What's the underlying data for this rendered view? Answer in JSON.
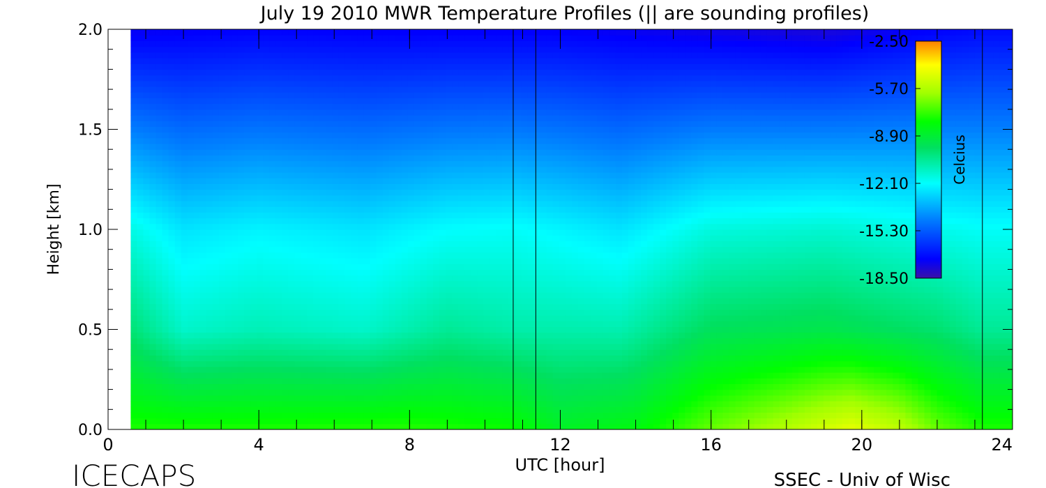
{
  "chart_data": {
    "type": "heatmap",
    "title": "July 19 2010 MWR Temperature Profiles (|| are sounding profiles)",
    "xlabel": "UTC [hour]",
    "ylabel": "Height [km]",
    "xlim": [
      0,
      24
    ],
    "ylim": [
      0,
      2.0
    ],
    "x_ticks": [
      0,
      4,
      8,
      12,
      16,
      20,
      24
    ],
    "y_ticks": [
      0.0,
      0.5,
      1.0,
      1.5,
      2.0
    ],
    "x_tick_labels": [
      "0",
      "4",
      "8",
      "12",
      "16",
      "20",
      "24"
    ],
    "y_tick_labels": [
      "0.0",
      "0.5",
      "1.0",
      "1.5",
      "2.0"
    ],
    "colorbar": {
      "label": "Celcius",
      "range": [
        -18.5,
        -2.5
      ],
      "tick_labels": [
        "-2.50",
        "-5.70",
        "-8.90",
        "-12.10",
        "-15.30",
        "-18.50"
      ],
      "colormap": [
        "#3a10a8",
        "#0000ff",
        "#0080ff",
        "#00ffff",
        "#00e060",
        "#00ff00",
        "#a0ff00",
        "#ffff00",
        "#ff8000"
      ]
    },
    "data_start_hour": 0.6,
    "sounding_profiles_hours": [
      10.75,
      11.35,
      23.2
    ],
    "surface_temperature_c": [
      {
        "hour": 0.6,
        "t": -7.6
      },
      {
        "hour": 4,
        "t": -7.6
      },
      {
        "hour": 8,
        "t": -7.5
      },
      {
        "hour": 10.7,
        "t": -7.8
      },
      {
        "hour": 12,
        "t": -8.6
      },
      {
        "hour": 14,
        "t": -8.2
      },
      {
        "hour": 16,
        "t": -6.7
      },
      {
        "hour": 18,
        "t": -5.6
      },
      {
        "hour": 19.7,
        "t": -4.6
      },
      {
        "hour": 21,
        "t": -5.4
      },
      {
        "hour": 22,
        "t": -6.7
      },
      {
        "hour": 23.2,
        "t": -7.6
      }
    ],
    "height_0p5km_temperature_c": [
      {
        "hour": 0.6,
        "t": -10.0
      },
      {
        "hour": 2,
        "t": -11.3
      },
      {
        "hour": 4,
        "t": -11.0
      },
      {
        "hour": 6.8,
        "t": -11.3
      },
      {
        "hour": 9,
        "t": -10.5
      },
      {
        "hour": 10.7,
        "t": -10.8
      },
      {
        "hour": 13.6,
        "t": -10.9
      },
      {
        "hour": 16,
        "t": -9.6
      },
      {
        "hour": 19,
        "t": -9.3
      },
      {
        "hour": 22,
        "t": -9.9
      },
      {
        "hour": 23.2,
        "t": -10.5
      }
    ],
    "height_1km_temperature_c": [
      {
        "hour": 0.6,
        "t": -11.7
      },
      {
        "hour": 2,
        "t": -12.6
      },
      {
        "hour": 4,
        "t": -12.3
      },
      {
        "hour": 6.8,
        "t": -12.6
      },
      {
        "hour": 9,
        "t": -12.1
      },
      {
        "hour": 10.7,
        "t": -12.0
      },
      {
        "hour": 13.6,
        "t": -12.6
      },
      {
        "hour": 16,
        "t": -11.6
      },
      {
        "hour": 19,
        "t": -11.4
      },
      {
        "hour": 22,
        "t": -11.8
      },
      {
        "hour": 23.2,
        "t": -12.0
      }
    ],
    "height_2km_temperature_c": [
      {
        "hour": 0.6,
        "t": -17.4
      },
      {
        "hour": 4,
        "t": -17.2
      },
      {
        "hour": 8,
        "t": -17.3
      },
      {
        "hour": 12,
        "t": -17.3
      },
      {
        "hour": 16,
        "t": -17.6
      },
      {
        "hour": 19,
        "t": -17.8
      },
      {
        "hour": 22,
        "t": -17.2
      },
      {
        "hour": 23.2,
        "t": -17.0
      }
    ]
  },
  "footer": {
    "left": "ICECAPS",
    "right": "SSEC - Univ of Wisc"
  }
}
